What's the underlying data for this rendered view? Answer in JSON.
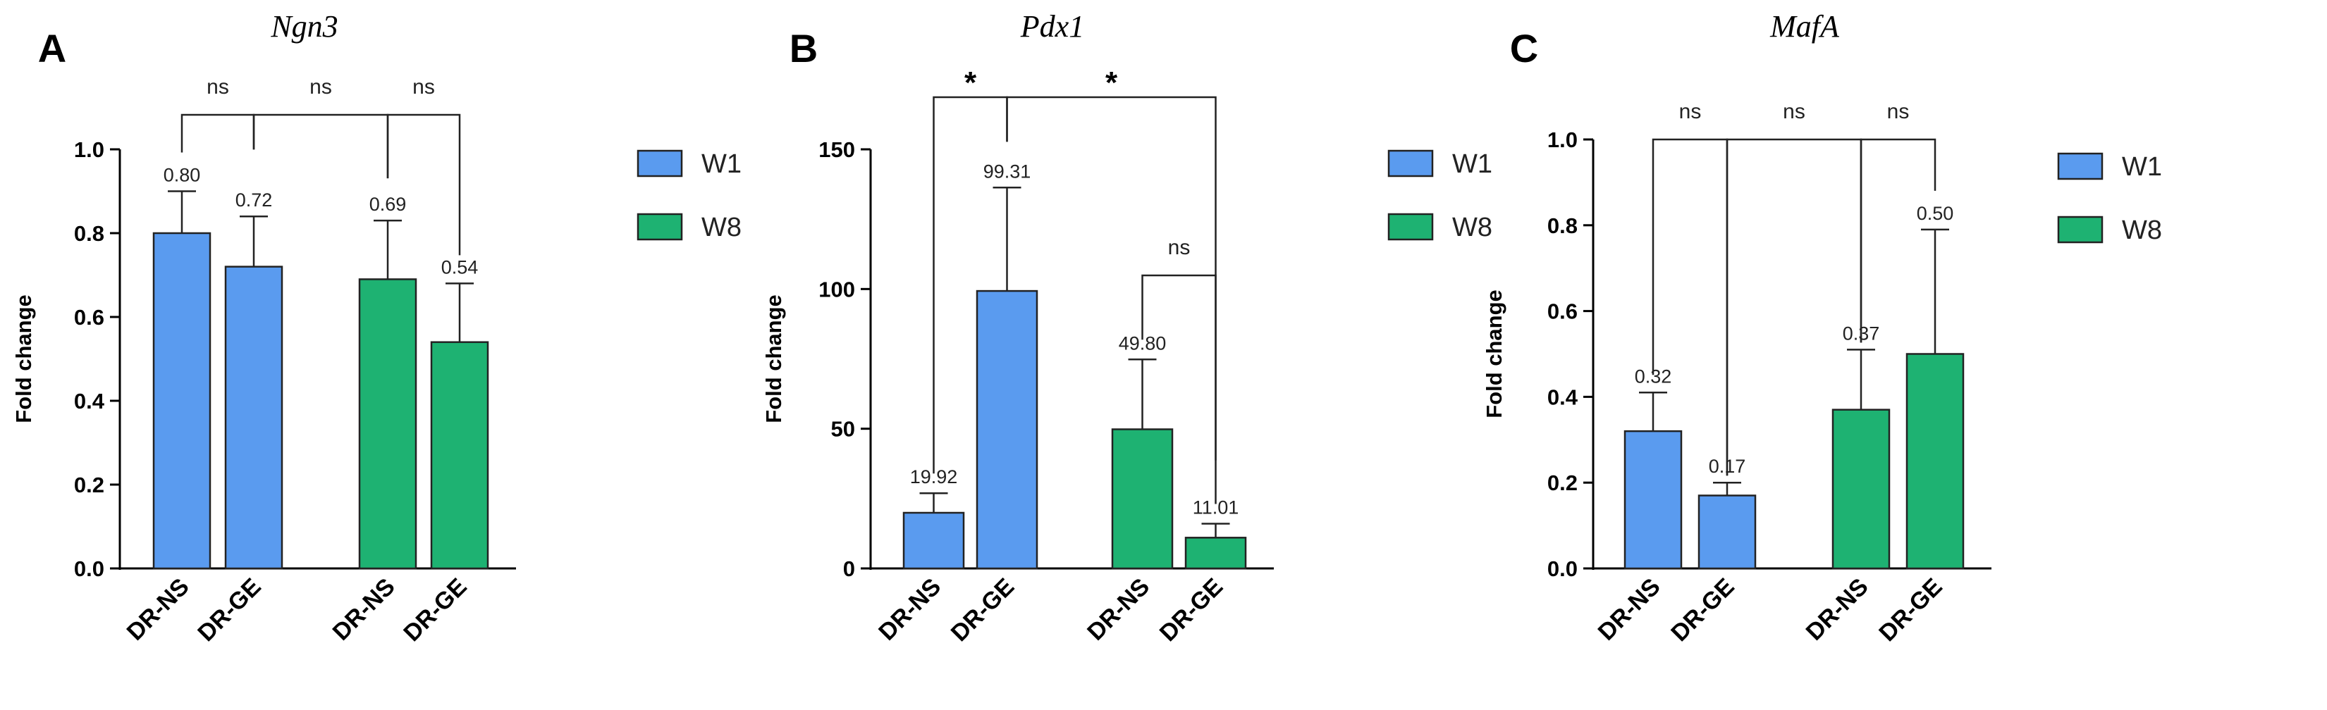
{
  "chart_data": [
    {
      "type": "bar",
      "panel": "A",
      "title": "Ngn3",
      "ylabel": "Fold change",
      "ylim": [
        0,
        1.0
      ],
      "yticks": [
        "0.0",
        "0.2",
        "0.4",
        "0.6",
        "0.8",
        "1.0"
      ],
      "categories": [
        "DR-NS",
        "DR-GE",
        "DR-NS",
        "DR-GE"
      ],
      "groups": [
        "W1",
        "W1",
        "W8",
        "W8"
      ],
      "values": [
        0.8,
        0.72,
        0.69,
        0.54
      ],
      "value_labels": [
        "0.80",
        "0.72",
        "0.69",
        "0.54"
      ],
      "errors": [
        0.1,
        0.12,
        0.14,
        0.14
      ],
      "comparisons": [
        {
          "from": 0,
          "to": 1,
          "label": "ns"
        },
        {
          "from": 1,
          "to": 2,
          "label": "ns"
        },
        {
          "from": 2,
          "to": 3,
          "label": "ns"
        }
      ],
      "legend": [
        "W1",
        "W8"
      ]
    },
    {
      "type": "bar",
      "panel": "B",
      "title": "Pdx1",
      "ylabel": "Fold change",
      "ylim": [
        0,
        150
      ],
      "yticks": [
        "0",
        "50",
        "100",
        "150"
      ],
      "categories": [
        "DR-NS",
        "DR-GE",
        "DR-NS",
        "DR-GE"
      ],
      "groups": [
        "W1",
        "W1",
        "W8",
        "W8"
      ],
      "values": [
        19.92,
        99.31,
        49.8,
        11.01
      ],
      "value_labels": [
        "19.92",
        "99.31",
        "49.80",
        "11.01"
      ],
      "errors": [
        7,
        37,
        25,
        5
      ],
      "comparisons": [
        {
          "from": 0,
          "to": 1,
          "label": "*"
        },
        {
          "from": 1,
          "to": 3,
          "label": "*"
        },
        {
          "from": 2,
          "to": 3,
          "label": "ns"
        }
      ],
      "legend": [
        "W1",
        "W8"
      ]
    },
    {
      "type": "bar",
      "panel": "C",
      "title": "MafA",
      "ylabel": "Fold change",
      "ylim": [
        0,
        1.0
      ],
      "yticks": [
        "0.0",
        "0.2",
        "0.4",
        "0.6",
        "0.8",
        "1.0"
      ],
      "categories": [
        "DR-NS",
        "DR-GE",
        "DR-NS",
        "DR-GE"
      ],
      "groups": [
        "W1",
        "W1",
        "W8",
        "W8"
      ],
      "values": [
        0.32,
        0.17,
        0.37,
        0.5
      ],
      "value_labels": [
        "0.32",
        "0.17",
        "0.37",
        "0.50"
      ],
      "errors": [
        0.09,
        0.03,
        0.14,
        0.29
      ],
      "comparisons": [
        {
          "from": 0,
          "to": 1,
          "label": "ns"
        },
        {
          "from": 1,
          "to": 2,
          "label": "ns"
        },
        {
          "from": 2,
          "to": 3,
          "label": "ns"
        }
      ],
      "legend": [
        "W1",
        "W8"
      ]
    }
  ],
  "colors": {
    "W1": "#5A9BEF",
    "W8": "#1EB272"
  }
}
